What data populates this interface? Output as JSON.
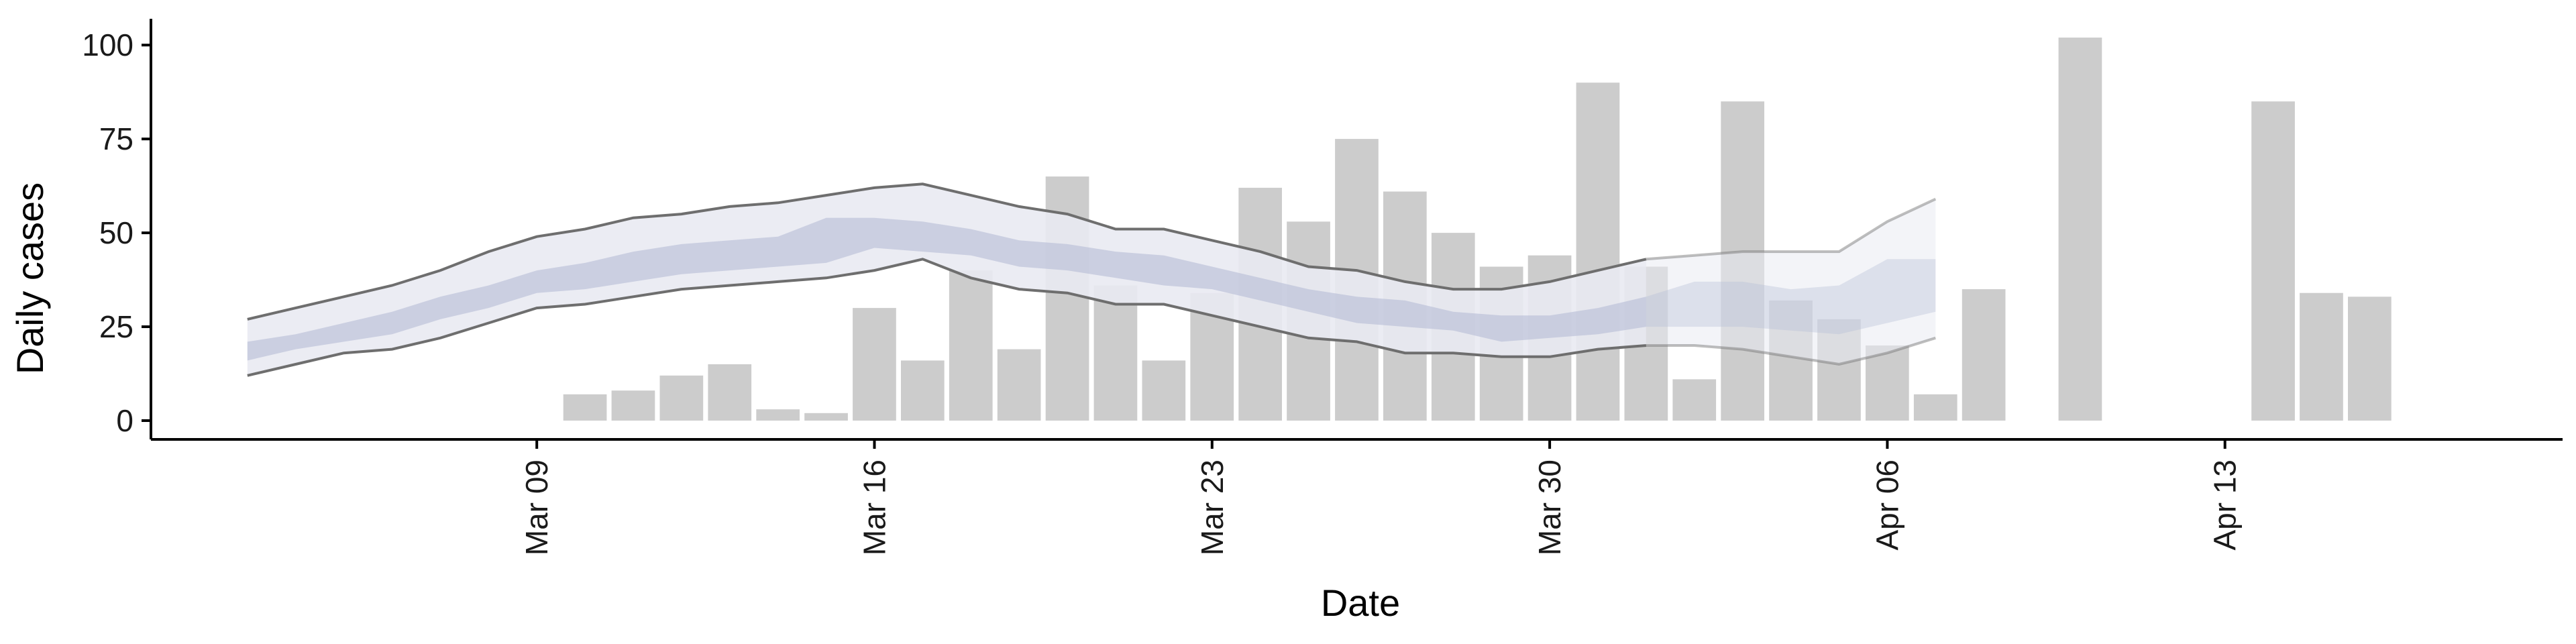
{
  "chart_data": {
    "type": "bar",
    "title": "",
    "xlabel": "Date",
    "ylabel": "Daily cases",
    "ylim": [
      -5,
      107
    ],
    "xlim": [
      "2020-03-01",
      "2020-04-20"
    ],
    "grid": false,
    "legend": "none",
    "y_ticks": [
      0,
      25,
      50,
      75,
      100
    ],
    "x_ticks": [
      {
        "date": "2020-03-09",
        "label": "Mar 09"
      },
      {
        "date": "2020-03-16",
        "label": "Mar 16"
      },
      {
        "date": "2020-03-23",
        "label": "Mar 23"
      },
      {
        "date": "2020-03-30",
        "label": "Mar 30"
      },
      {
        "date": "2020-04-06",
        "label": "Apr 06"
      },
      {
        "date": "2020-04-13",
        "label": "Apr 13"
      }
    ],
    "colors": {
      "bars": "#cccccc",
      "outer_band": "#e9eaf2",
      "inner_band": "#b5bcd5",
      "interval_lines": "#6e6e6e",
      "axis": "#000000"
    },
    "bars": {
      "dates": [
        "2020-03-10",
        "2020-03-11",
        "2020-03-12",
        "2020-03-13",
        "2020-03-14",
        "2020-03-15",
        "2020-03-16",
        "2020-03-17",
        "2020-03-18",
        "2020-03-19",
        "2020-03-20",
        "2020-03-21",
        "2020-03-22",
        "2020-03-23",
        "2020-03-24",
        "2020-03-25",
        "2020-03-26",
        "2020-03-27",
        "2020-03-28",
        "2020-03-29",
        "2020-03-30",
        "2020-03-31",
        "2020-04-01",
        "2020-04-02",
        "2020-04-03",
        "2020-04-04",
        "2020-04-05",
        "2020-04-06",
        "2020-04-07",
        "2020-04-08",
        "2020-04-10",
        "2020-04-14",
        "2020-04-15",
        "2020-04-16"
      ],
      "values": [
        7,
        8,
        12,
        15,
        3,
        2,
        30,
        16,
        40,
        19,
        65,
        36,
        16,
        34,
        62,
        53,
        75,
        61,
        50,
        41,
        44,
        90,
        41,
        11,
        85,
        32,
        27,
        20,
        7,
        35,
        102,
        85,
        34,
        33
      ]
    },
    "nowcast": {
      "dates": [
        "2020-03-03",
        "2020-03-04",
        "2020-03-05",
        "2020-03-06",
        "2020-03-07",
        "2020-03-08",
        "2020-03-09",
        "2020-03-10",
        "2020-03-11",
        "2020-03-12",
        "2020-03-13",
        "2020-03-14",
        "2020-03-15",
        "2020-03-16",
        "2020-03-17",
        "2020-03-18",
        "2020-03-19",
        "2020-03-20",
        "2020-03-21",
        "2020-03-22",
        "2020-03-23",
        "2020-03-24",
        "2020-03-25",
        "2020-03-26",
        "2020-03-27",
        "2020-03-28",
        "2020-03-29",
        "2020-03-30",
        "2020-03-31",
        "2020-04-01",
        "2020-04-02",
        "2020-04-03",
        "2020-04-04",
        "2020-04-05",
        "2020-04-06",
        "2020-04-07"
      ],
      "upper90": [
        27,
        30,
        33,
        36,
        40,
        45,
        49,
        51,
        54,
        55,
        57,
        58,
        60,
        62,
        63,
        60,
        57,
        55,
        51,
        51,
        48,
        45,
        41,
        40,
        37,
        35,
        35,
        37,
        40,
        43,
        44,
        45,
        45,
        45,
        53,
        59
      ],
      "upper50": [
        21,
        23,
        26,
        29,
        33,
        36,
        40,
        42,
        45,
        47,
        48,
        49,
        54,
        54,
        53,
        51,
        48,
        47,
        45,
        44,
        41,
        38,
        35,
        33,
        32,
        29,
        28,
        28,
        30,
        33,
        37,
        37,
        35,
        36,
        43,
        43
      ],
      "lower50": [
        16,
        19,
        21,
        23,
        27,
        30,
        34,
        35,
        37,
        39,
        40,
        41,
        42,
        46,
        45,
        44,
        41,
        40,
        38,
        36,
        35,
        32,
        29,
        26,
        25,
        24,
        21,
        22,
        23,
        25,
        25,
        25,
        24,
        23,
        26,
        29
      ],
      "lower90": [
        12,
        15,
        18,
        19,
        22,
        26,
        30,
        31,
        33,
        35,
        36,
        37,
        38,
        40,
        43,
        38,
        35,
        34,
        31,
        31,
        28,
        25,
        22,
        21,
        18,
        18,
        17,
        17,
        19,
        20,
        20,
        19,
        17,
        15,
        18,
        22
      ]
    },
    "forecast_segment_start": "2020-04-01"
  }
}
